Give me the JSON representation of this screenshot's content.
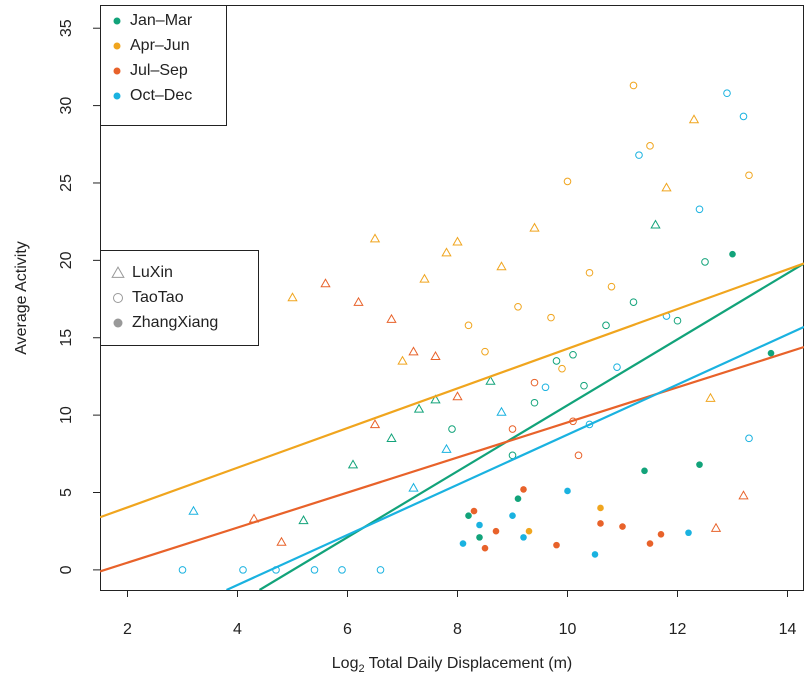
{
  "chart_data": {
    "type": "scatter",
    "x_label": {
      "text": "Log",
      "sub": "2",
      "rest": "Total Daily Displacement (m)"
    },
    "y_label": "Average Activity",
    "xlim": [
      1.5,
      14.3
    ],
    "xticks": [
      2,
      4,
      6,
      8,
      10,
      12,
      14
    ],
    "ylim": [
      -1.3,
      36.5
    ],
    "yticks": [
      0,
      5,
      10,
      15,
      20,
      25,
      30,
      35
    ],
    "legend": "top-left",
    "shape_legend": [
      {
        "name": "LuXin",
        "shape": "triangle"
      },
      {
        "name": "TaoTao",
        "shape": "circle"
      },
      {
        "name": "ZhangXiang",
        "shape": "dot"
      }
    ],
    "series": [
      {
        "name": "Jan–Mar",
        "color": "#12a37a",
        "x": [
          5.2,
          6.1,
          6.8,
          7.3,
          7.9,
          8.2,
          8.6,
          9.0,
          9.4,
          9.8,
          10.3,
          10.7,
          11.2,
          11.6,
          12.0,
          12.5,
          13.0,
          13.7,
          8.4,
          9.1,
          11.4,
          12.4,
          10.1,
          7.6
        ],
        "values": [
          3.2,
          6.8,
          8.5,
          10.4,
          9.1,
          3.5,
          12.2,
          7.4,
          10.8,
          13.5,
          11.9,
          15.8,
          17.3,
          22.3,
          16.1,
          19.9,
          20.4,
          14.0,
          2.1,
          4.6,
          6.4,
          6.8,
          13.9,
          11.0
        ],
        "subject": [
          "LuXin",
          "LuXin",
          "LuXin",
          "LuXin",
          "TaoTao",
          "ZhangXiang",
          "LuXin",
          "TaoTao",
          "TaoTao",
          "TaoTao",
          "TaoTao",
          "TaoTao",
          "TaoTao",
          "LuXin",
          "TaoTao",
          "TaoTao",
          "ZhangXiang",
          "ZhangXiang",
          "ZhangXiang",
          "ZhangXiang",
          "ZhangXiang",
          "ZhangXiang",
          "TaoTao",
          "LuXin"
        ],
        "fit": {
          "x": [
            4.4,
            14.3
          ],
          "y": [
            -1.3,
            19.8
          ]
        }
      },
      {
        "name": "Apr–Jun",
        "color": "#f0a51e",
        "x": [
          5.0,
          6.5,
          7.0,
          7.4,
          7.8,
          8.2,
          8.5,
          8.8,
          9.1,
          9.4,
          9.7,
          10.0,
          10.4,
          10.8,
          11.2,
          11.5,
          11.8,
          12.3,
          13.3,
          9.3,
          10.6,
          12.6,
          8.0,
          9.9
        ],
        "values": [
          17.6,
          21.4,
          13.5,
          18.8,
          20.5,
          15.8,
          14.1,
          19.6,
          17.0,
          22.1,
          16.3,
          25.1,
          19.2,
          18.3,
          31.3,
          27.4,
          24.7,
          29.1,
          25.5,
          2.5,
          4.0,
          11.1,
          21.2,
          13.0
        ],
        "subject": [
          "LuXin",
          "LuXin",
          "LuXin",
          "LuXin",
          "LuXin",
          "TaoTao",
          "TaoTao",
          "LuXin",
          "TaoTao",
          "LuXin",
          "TaoTao",
          "TaoTao",
          "TaoTao",
          "TaoTao",
          "TaoTao",
          "TaoTao",
          "LuXin",
          "LuXin",
          "TaoTao",
          "ZhangXiang",
          "ZhangXiang",
          "LuXin",
          "LuXin",
          "TaoTao"
        ],
        "fit": {
          "x": [
            1.5,
            14.3
          ],
          "y": [
            3.4,
            19.8
          ]
        }
      },
      {
        "name": "Jul–Sep",
        "color": "#e8622a",
        "x": [
          4.8,
          5.6,
          6.2,
          6.8,
          7.2,
          7.6,
          8.0,
          8.3,
          8.7,
          9.0,
          9.4,
          9.8,
          10.2,
          10.6,
          11.0,
          11.5,
          12.7,
          13.2,
          8.5,
          9.2,
          10.1,
          11.7,
          6.5,
          4.3
        ],
        "values": [
          1.8,
          18.5,
          17.3,
          16.2,
          14.1,
          13.8,
          11.2,
          3.8,
          2.5,
          9.1,
          12.1,
          1.6,
          7.4,
          3.0,
          2.8,
          1.7,
          2.7,
          4.8,
          1.4,
          5.2,
          9.6,
          2.3,
          9.4,
          3.3
        ],
        "subject": [
          "LuXin",
          "LuXin",
          "LuXin",
          "LuXin",
          "LuXin",
          "LuXin",
          "LuXin",
          "ZhangXiang",
          "ZhangXiang",
          "TaoTao",
          "TaoTao",
          "ZhangXiang",
          "TaoTao",
          "ZhangXiang",
          "ZhangXiang",
          "ZhangXiang",
          "LuXin",
          "LuXin",
          "ZhangXiang",
          "ZhangXiang",
          "TaoTao",
          "ZhangXiang",
          "LuXin",
          "LuXin"
        ],
        "fit": {
          "x": [
            1.5,
            14.3
          ],
          "y": [
            -0.1,
            14.4
          ]
        }
      },
      {
        "name": "Oct–Dec",
        "color": "#1ab2e0",
        "x": [
          3.0,
          3.2,
          4.1,
          4.7,
          5.4,
          5.9,
          6.6,
          7.2,
          7.8,
          8.4,
          8.8,
          9.2,
          9.6,
          10.0,
          10.4,
          10.9,
          11.3,
          11.8,
          12.4,
          12.9,
          13.2,
          13.3,
          8.1,
          9.0,
          10.5,
          12.2
        ],
        "values": [
          0,
          3.8,
          0,
          0,
          0,
          0,
          0,
          5.3,
          7.8,
          2.9,
          10.2,
          2.1,
          11.8,
          5.1,
          9.4,
          13.1,
          26.8,
          16.4,
          23.3,
          30.8,
          29.3,
          8.5,
          1.7,
          3.5,
          1.0,
          2.4
        ],
        "subject": [
          "TaoTao",
          "LuXin",
          "TaoTao",
          "TaoTao",
          "TaoTao",
          "TaoTao",
          "TaoTao",
          "LuXin",
          "LuXin",
          "ZhangXiang",
          "LuXin",
          "ZhangXiang",
          "TaoTao",
          "ZhangXiang",
          "TaoTao",
          "TaoTao",
          "TaoTao",
          "TaoTao",
          "TaoTao",
          "TaoTao",
          "TaoTao",
          "TaoTao",
          "ZhangXiang",
          "ZhangXiang",
          "ZhangXiang",
          "ZhangXiang"
        ],
        "fit": {
          "x": [
            3.8,
            14.3
          ],
          "y": [
            -1.3,
            15.7
          ]
        }
      }
    ]
  }
}
